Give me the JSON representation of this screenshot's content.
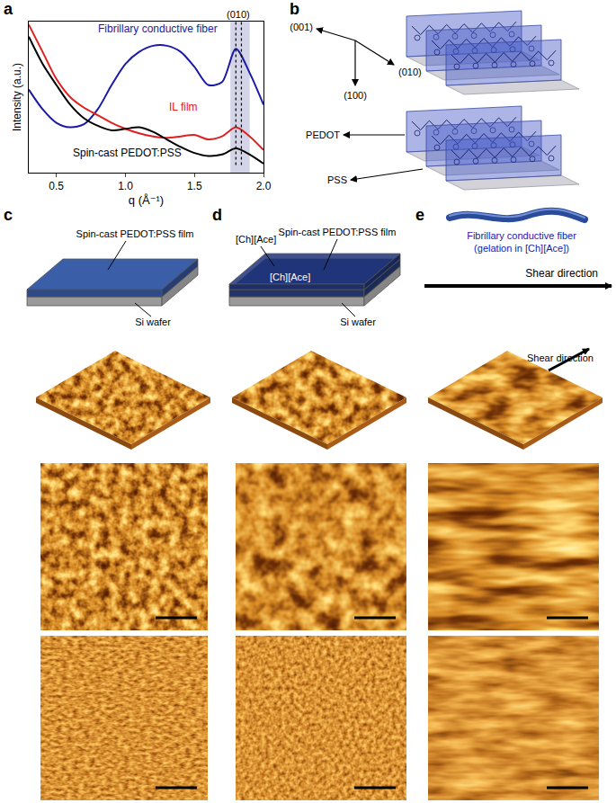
{
  "chart_data": {
    "type": "line",
    "panel_label": "a",
    "xlabel": "q (Å⁻¹)",
    "ylabel": "Intensity (a.u.)",
    "x": [
      0.3,
      0.4,
      0.5,
      0.6,
      0.7,
      0.8,
      0.9,
      1.0,
      1.1,
      1.2,
      1.3,
      1.4,
      1.5,
      1.6,
      1.7,
      1.8,
      1.9,
      2.0
    ],
    "series": [
      {
        "name": "Fibrillary conductive fiber",
        "color": "#1a1aa6",
        "values": [
          0.55,
          0.42,
          0.33,
          0.3,
          0.32,
          0.42,
          0.58,
          0.72,
          0.8,
          0.84,
          0.84,
          0.8,
          0.7,
          0.58,
          0.6,
          0.82,
          0.66,
          0.45
        ]
      },
      {
        "name": "IL film",
        "color": "#e02020",
        "values": [
          0.98,
          0.8,
          0.62,
          0.5,
          0.43,
          0.38,
          0.33,
          0.29,
          0.26,
          0.24,
          0.23,
          0.24,
          0.25,
          0.22,
          0.24,
          0.3,
          0.24,
          0.15
        ]
      },
      {
        "name": "Spin-cast PEDOT:PSS",
        "color": "#000000",
        "values": [
          0.9,
          0.72,
          0.58,
          0.45,
          0.36,
          0.31,
          0.28,
          0.29,
          0.3,
          0.27,
          0.22,
          0.17,
          0.13,
          0.11,
          0.12,
          0.16,
          0.12,
          0.06
        ]
      }
    ],
    "xlim": [
      0.3,
      2.0
    ],
    "xticks": [
      0.5,
      {
        "value": 1,
        "label": "1.0"
      },
      1.5,
      {
        "value": 2,
        "label": "2.0"
      }
    ],
    "ylim": [
      0,
      1
    ],
    "yticks": [],
    "tick_labels": "x",
    "grid": false,
    "peak_label": "(010)",
    "highlight": [
      1.76,
      1.9
    ],
    "highlight_color": "#b8b8d8",
    "reference_lines": [
      1.8,
      1.84
    ]
  },
  "figure": {
    "b": {
      "label": "b",
      "axes": [
        "(001)",
        "(010)",
        "(100)"
      ],
      "pedot": "PEDOT",
      "pss": "PSS"
    },
    "c": {
      "label": "c",
      "film": "Spin-cast PEDOT:PSS film",
      "substrate": "Si wafer"
    },
    "d": {
      "label": "d",
      "film": "Spin-cast PEDOT:PSS film",
      "substrate": "Si wafer",
      "il_top": "[Ch][Ace]",
      "il_bottom": "[Ch][Ace]"
    },
    "e": {
      "label": "e",
      "fiber": "Fibrillary conductive fiber",
      "note": "(gelation in [Ch][Ace])",
      "shear": "Shear direction",
      "shear_afm": "Shear direction"
    }
  }
}
